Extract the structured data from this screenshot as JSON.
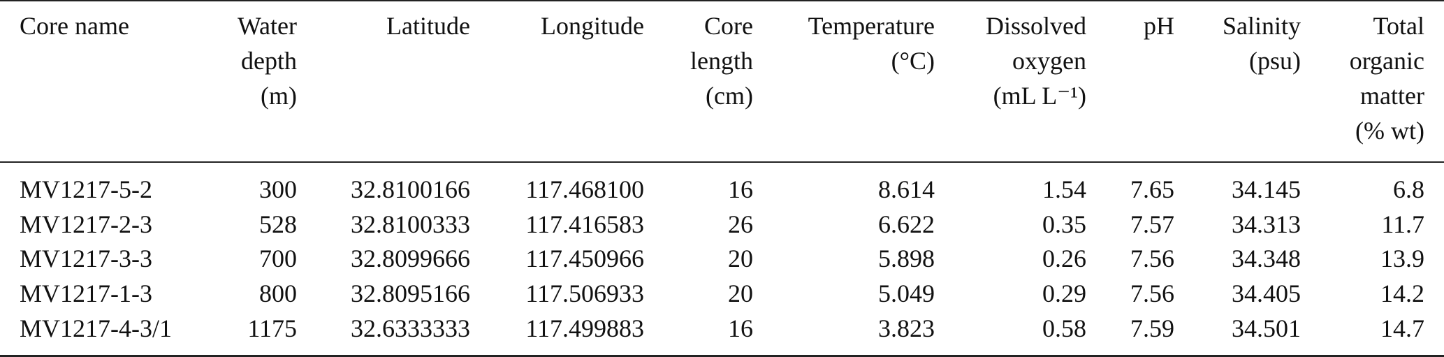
{
  "table": {
    "headers": [
      [
        "Core name"
      ],
      [
        "Water",
        "depth",
        "(m)"
      ],
      [
        "Latitude"
      ],
      [
        "Longitude"
      ],
      [
        "Core",
        "length",
        "(cm)"
      ],
      [
        "Temperature",
        "(°C)"
      ],
      [
        "Dissolved",
        "oxygen",
        "(mL L⁻¹)"
      ],
      [
        "pH"
      ],
      [
        "Salinity",
        "(psu)"
      ],
      [
        "Total",
        "organic",
        "matter",
        "(% wt)"
      ]
    ],
    "rows": [
      [
        "MV1217-5-2",
        "300",
        "32.8100166",
        "117.468100",
        "16",
        "8.614",
        "1.54",
        "7.65",
        "34.145",
        "6.8"
      ],
      [
        "MV1217-2-3",
        "528",
        "32.8100333",
        "117.416583",
        "26",
        "6.622",
        "0.35",
        "7.57",
        "34.313",
        "11.7"
      ],
      [
        "MV1217-3-3",
        "700",
        "32.8099666",
        "117.450966",
        "20",
        "5.898",
        "0.26",
        "7.56",
        "34.348",
        "13.9"
      ],
      [
        "MV1217-1-3",
        "800",
        "32.8095166",
        "117.506933",
        "20",
        "5.049",
        "0.29",
        "7.56",
        "34.405",
        "14.2"
      ],
      [
        "MV1217-4-3/1",
        "1175",
        "32.6333333",
        "117.499883",
        "16",
        "3.823",
        "0.58",
        "7.59",
        "34.501",
        "14.7"
      ]
    ]
  }
}
